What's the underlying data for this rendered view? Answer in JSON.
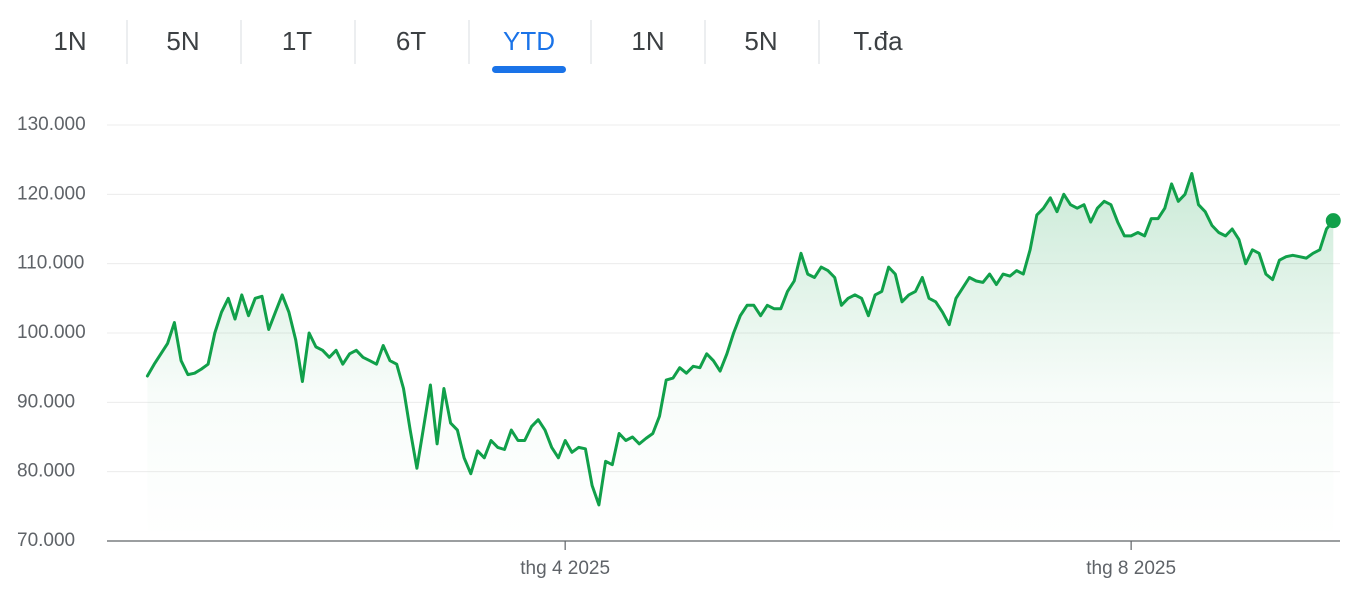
{
  "tabs": [
    "1N",
    "5N",
    "1T",
    "6T",
    "YTD",
    "1N",
    "5N",
    "T.đa"
  ],
  "active_tab": 4,
  "chart_data": {
    "type": "line",
    "color": "#11a04a",
    "grid": true,
    "ylim": [
      70000,
      130000
    ],
    "yticks": [
      {
        "value": 70000,
        "label": "70.000"
      },
      {
        "value": 80000,
        "label": "80.000"
      },
      {
        "value": 90000,
        "label": "90.000"
      },
      {
        "value": 100000,
        "label": "100.000"
      },
      {
        "value": 110000,
        "label": "110.000"
      },
      {
        "value": 120000,
        "label": "120.000"
      },
      {
        "value": 130000,
        "label": "130.000"
      }
    ],
    "xlim": [
      -6,
      177
    ],
    "xticks": [
      {
        "value": 62,
        "label": "thg 4 2025"
      },
      {
        "value": 146,
        "label": "thg 8 2025"
      }
    ],
    "values": [
      93800,
      95500,
      97000,
      98500,
      101500,
      96000,
      94000,
      94200,
      94800,
      95500,
      100000,
      103000,
      105000,
      102000,
      105500,
      102500,
      105000,
      105300,
      100500,
      103000,
      105500,
      103000,
      99000,
      93000,
      100000,
      98000,
      97500,
      96500,
      97500,
      95500,
      97000,
      97500,
      96500,
      96000,
      95500,
      98200,
      96000,
      95500,
      92000,
      86000,
      80500,
      86500,
      92500,
      84000,
      92000,
      87000,
      86000,
      82000,
      79700,
      83000,
      82000,
      84500,
      83500,
      83200,
      86000,
      84500,
      84500,
      86500,
      87500,
      86000,
      83500,
      82000,
      84500,
      82800,
      83500,
      83300,
      78000,
      75200,
      81500,
      81000,
      85500,
      84500,
      85000,
      84000,
      84800,
      85500,
      88000,
      93200,
      93500,
      95000,
      94200,
      95200,
      95000,
      97000,
      96000,
      94500,
      97000,
      100000,
      102500,
      104000,
      104000,
      102500,
      104000,
      103500,
      103500,
      106000,
      107500,
      111500,
      108500,
      108000,
      109500,
      109000,
      108000,
      104000,
      105000,
      105500,
      105000,
      102500,
      105500,
      106000,
      109500,
      108500,
      104500,
      105500,
      106000,
      108000,
      105000,
      104500,
      103000,
      101200,
      105000,
      106500,
      108000,
      107500,
      107300,
      108500,
      107000,
      108500,
      108200,
      109000,
      108500,
      112000,
      117000,
      118000,
      119500,
      117500,
      120000,
      118500,
      118000,
      118500,
      116000,
      118000,
      119000,
      118500,
      116000,
      114000,
      114000,
      114500,
      114000,
      116500,
      116500,
      118000,
      121500,
      119000,
      120000,
      123000,
      118500,
      117500,
      115500,
      114500,
      114000,
      115000,
      113500,
      110000,
      112000,
      111500,
      108500,
      107700,
      110500,
      111000,
      111200,
      111000,
      110800,
      111500,
      112000,
      115000,
      116200
    ]
  }
}
